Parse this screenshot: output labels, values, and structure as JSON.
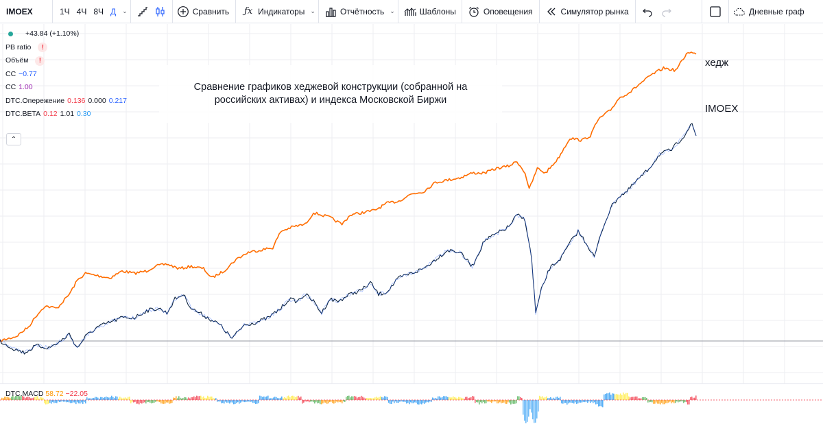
{
  "toolbar": {
    "symbol": "IMOEX",
    "intervals": [
      {
        "label": "1Ч",
        "active": false
      },
      {
        "label": "4Ч",
        "active": false
      },
      {
        "label": "8Ч",
        "active": false
      },
      {
        "label": "Д",
        "active": true
      }
    ],
    "compare_label": "Сравнить",
    "indicators_label": "Индикаторы",
    "financials_label": "Отчётность",
    "templates_label": "Шаблоны",
    "alerts_label": "Оповещения",
    "replay_label": "Симулятор рынка",
    "layout_label": "Дневные граф"
  },
  "legend": {
    "change": "+43.84 (+1.10%)",
    "pb_ratio": "PB ratio",
    "volume": "Объём",
    "warn_glyph": "!",
    "cc1_name": "CC",
    "cc1_value": "−0.77",
    "cc2_name": "CC",
    "cc2_value": "1.00",
    "lead_name": "DTC.Опережение",
    "lead_v1": "0.136",
    "lead_v2": "0.000",
    "lead_v3": "0.217",
    "beta_name": "DTC.BETA",
    "beta_v1": "0.12",
    "beta_v2": "1.01",
    "beta_v3": "0.30",
    "collapse_glyph": "⌃"
  },
  "annotation": {
    "line1": "Сравнение графиков хеджевой конструкции (собранной на",
    "line2": "российских активах) и индекса Московской Биржи"
  },
  "series_labels": {
    "hedge": "хедж",
    "index": "IMOEX"
  },
  "macd": {
    "name": "DTC.MACD",
    "v1": "58.72",
    "v2": "−22.05"
  },
  "colors": {
    "hedge": "#ff6d00",
    "index": "#0c2340",
    "index_highlight": "#2962ff",
    "grid": "#eceef2",
    "baseline": "#9598a1"
  },
  "chart_data": {
    "type": "line",
    "series": [
      {
        "name": "хедж",
        "points": [
          [
            0,
            0
          ],
          [
            2,
            0.02
          ],
          [
            3.5,
            0.06
          ],
          [
            4.5,
            0.11
          ],
          [
            5.5,
            0.15
          ],
          [
            7,
            0.14
          ],
          [
            8.5,
            0.2
          ],
          [
            9.5,
            0.26
          ],
          [
            10.5,
            0.29
          ],
          [
            12,
            0.28
          ],
          [
            13.5,
            0.27
          ],
          [
            15,
            0.3
          ],
          [
            16.5,
            0.29
          ],
          [
            18,
            0.3
          ],
          [
            19,
            0.32
          ],
          [
            20.5,
            0.33
          ],
          [
            22,
            0.31
          ],
          [
            23.5,
            0.32
          ],
          [
            25,
            0.31
          ],
          [
            26,
            0.27
          ],
          [
            27.5,
            0.3
          ],
          [
            29,
            0.35
          ],
          [
            30.5,
            0.38
          ],
          [
            32,
            0.39
          ],
          [
            33.5,
            0.4
          ],
          [
            34.5,
            0.47
          ],
          [
            36,
            0.49
          ],
          [
            37.5,
            0.5
          ],
          [
            38.5,
            0.55
          ],
          [
            39.5,
            0.54
          ],
          [
            40.5,
            0.53
          ],
          [
            42,
            0.5
          ],
          [
            43,
            0.54
          ],
          [
            44.5,
            0.55
          ],
          [
            46,
            0.56
          ],
          [
            47.5,
            0.59
          ],
          [
            49,
            0.6
          ],
          [
            50.5,
            0.63
          ],
          [
            52,
            0.64
          ],
          [
            53.5,
            0.68
          ],
          [
            55,
            0.69
          ],
          [
            56.5,
            0.7
          ],
          [
            58,
            0.72
          ],
          [
            59.5,
            0.72
          ],
          [
            61,
            0.74
          ],
          [
            62.5,
            0.75
          ],
          [
            63.5,
            0.77
          ],
          [
            64.5,
            0.72
          ],
          [
            65,
            0.65
          ],
          [
            66,
            0.74
          ],
          [
            67,
            0.72
          ],
          [
            68.5,
            0.78
          ],
          [
            70,
            0.87
          ],
          [
            71.5,
            0.86
          ],
          [
            72.5,
            0.88
          ],
          [
            73.5,
            0.95
          ],
          [
            75,
            0.99
          ],
          [
            76,
            1.04
          ],
          [
            77.5,
            1.07
          ],
          [
            78.5,
            1.1
          ],
          [
            80,
            1.14
          ],
          [
            81.5,
            1.17
          ],
          [
            83,
            1.16
          ],
          [
            84.5,
            1.24
          ],
          [
            85.5,
            1.23
          ]
        ]
      },
      {
        "name": "IMOEX",
        "points": [
          [
            0,
            0
          ],
          [
            1.5,
            -0.03
          ],
          [
            3,
            -0.05
          ],
          [
            4.5,
            -0.02
          ],
          [
            6,
            -0.03
          ],
          [
            7.5,
            0
          ],
          [
            8.5,
            0.03
          ],
          [
            9.5,
            -0.03
          ],
          [
            10.5,
            0.02
          ],
          [
            12,
            0.06
          ],
          [
            13.5,
            0.08
          ],
          [
            15,
            0.1
          ],
          [
            16.5,
            0.1
          ],
          [
            18,
            0.13
          ],
          [
            19.5,
            0.14
          ],
          [
            20.5,
            0.12
          ],
          [
            21.5,
            0.18
          ],
          [
            22.5,
            0.2
          ],
          [
            23.5,
            0.14
          ],
          [
            24.5,
            0.12
          ],
          [
            25.5,
            0.1
          ],
          [
            27,
            0.07
          ],
          [
            28.5,
            0.01
          ],
          [
            30,
            0.07
          ],
          [
            31.5,
            0.08
          ],
          [
            33,
            0.1
          ],
          [
            34.5,
            0.14
          ],
          [
            35.5,
            0.18
          ],
          [
            36.5,
            0.17
          ],
          [
            37.5,
            0.2
          ],
          [
            38.5,
            0.17
          ],
          [
            39.5,
            0.12
          ],
          [
            40.5,
            0.18
          ],
          [
            41.5,
            0.17
          ],
          [
            43,
            0.2
          ],
          [
            44.5,
            0.22
          ],
          [
            45.5,
            0.25
          ],
          [
            46.5,
            0.2
          ],
          [
            47.5,
            0.21
          ],
          [
            49,
            0.27
          ],
          [
            50.5,
            0.29
          ],
          [
            52,
            0.31
          ],
          [
            53.5,
            0.35
          ],
          [
            55,
            0.39
          ],
          [
            56.5,
            0.38
          ],
          [
            58,
            0.32
          ],
          [
            59.5,
            0.43
          ],
          [
            61,
            0.46
          ],
          [
            62.5,
            0.49
          ],
          [
            63.5,
            0.54
          ],
          [
            64.5,
            0.52
          ],
          [
            65.3,
            0.35
          ],
          [
            65.8,
            0.12
          ],
          [
            66.5,
            0.22
          ],
          [
            67.5,
            0.31
          ],
          [
            69,
            0.36
          ],
          [
            70,
            0.42
          ],
          [
            71,
            0.47
          ],
          [
            72,
            0.42
          ],
          [
            73,
            0.36
          ],
          [
            74,
            0.48
          ],
          [
            75,
            0.57
          ],
          [
            76,
            0.62
          ],
          [
            77,
            0.64
          ],
          [
            78,
            0.68
          ],
          [
            79.5,
            0.73
          ],
          [
            81,
            0.8
          ],
          [
            82.5,
            0.82
          ],
          [
            84,
            0.88
          ],
          [
            85,
            0.93
          ],
          [
            85.5,
            0.88
          ]
        ]
      }
    ],
    "baseline": 0,
    "grid": true
  }
}
